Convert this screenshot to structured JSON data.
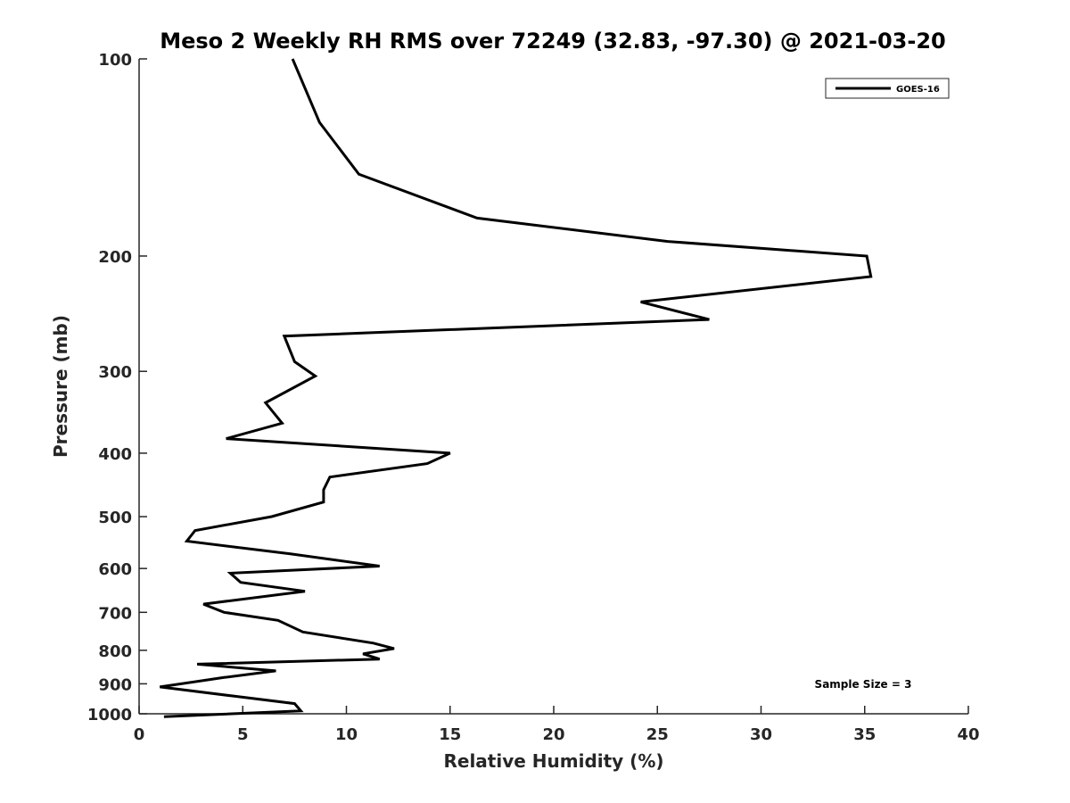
{
  "chart_data": {
    "type": "line",
    "title": "Meso 2 Weekly RH RMS over 72249 (32.83, -97.30) @ 2021-03-20",
    "xlabel": "Relative Humidity (%)",
    "ylabel": "Pressure (mb)",
    "xlim": [
      0,
      40
    ],
    "ylim": [
      100,
      1000
    ],
    "y_scale": "log",
    "y_reversed": true,
    "x_ticks": [
      0,
      5,
      10,
      15,
      20,
      25,
      30,
      35,
      40
    ],
    "y_ticks": [
      100,
      200,
      300,
      400,
      500,
      600,
      700,
      800,
      900,
      1000
    ],
    "grid": false,
    "legend_position": "top-right",
    "annotation": "Sample Size = 3",
    "series": [
      {
        "name": "GOES-16",
        "color": "#000000",
        "x": [
          7.4,
          8.7,
          10.6,
          16.3,
          25.5,
          35.1,
          35.3,
          24.2,
          27.5,
          7.0,
          7.5,
          8.5,
          6.1,
          6.9,
          4.2,
          15.0,
          13.9,
          9.2,
          8.9,
          8.9,
          6.4,
          2.7,
          2.3,
          7.3,
          11.6,
          4.4,
          4.9,
          8.0,
          3.1,
          4.1,
          6.7,
          7.9,
          11.3,
          12.3,
          10.8,
          11.6,
          2.8,
          6.6,
          4.1,
          1.0,
          4.6,
          7.5,
          7.8,
          1.2
        ],
        "y": [
          100,
          125,
          150,
          175,
          190,
          200,
          215,
          235,
          250,
          265,
          290,
          305,
          335,
          360,
          380,
          400,
          415,
          435,
          455,
          475,
          500,
          525,
          545,
          570,
          595,
          610,
          630,
          650,
          680,
          700,
          720,
          750,
          780,
          795,
          810,
          825,
          840,
          860,
          880,
          910,
          940,
          965,
          990,
          1010
        ]
      }
    ]
  }
}
